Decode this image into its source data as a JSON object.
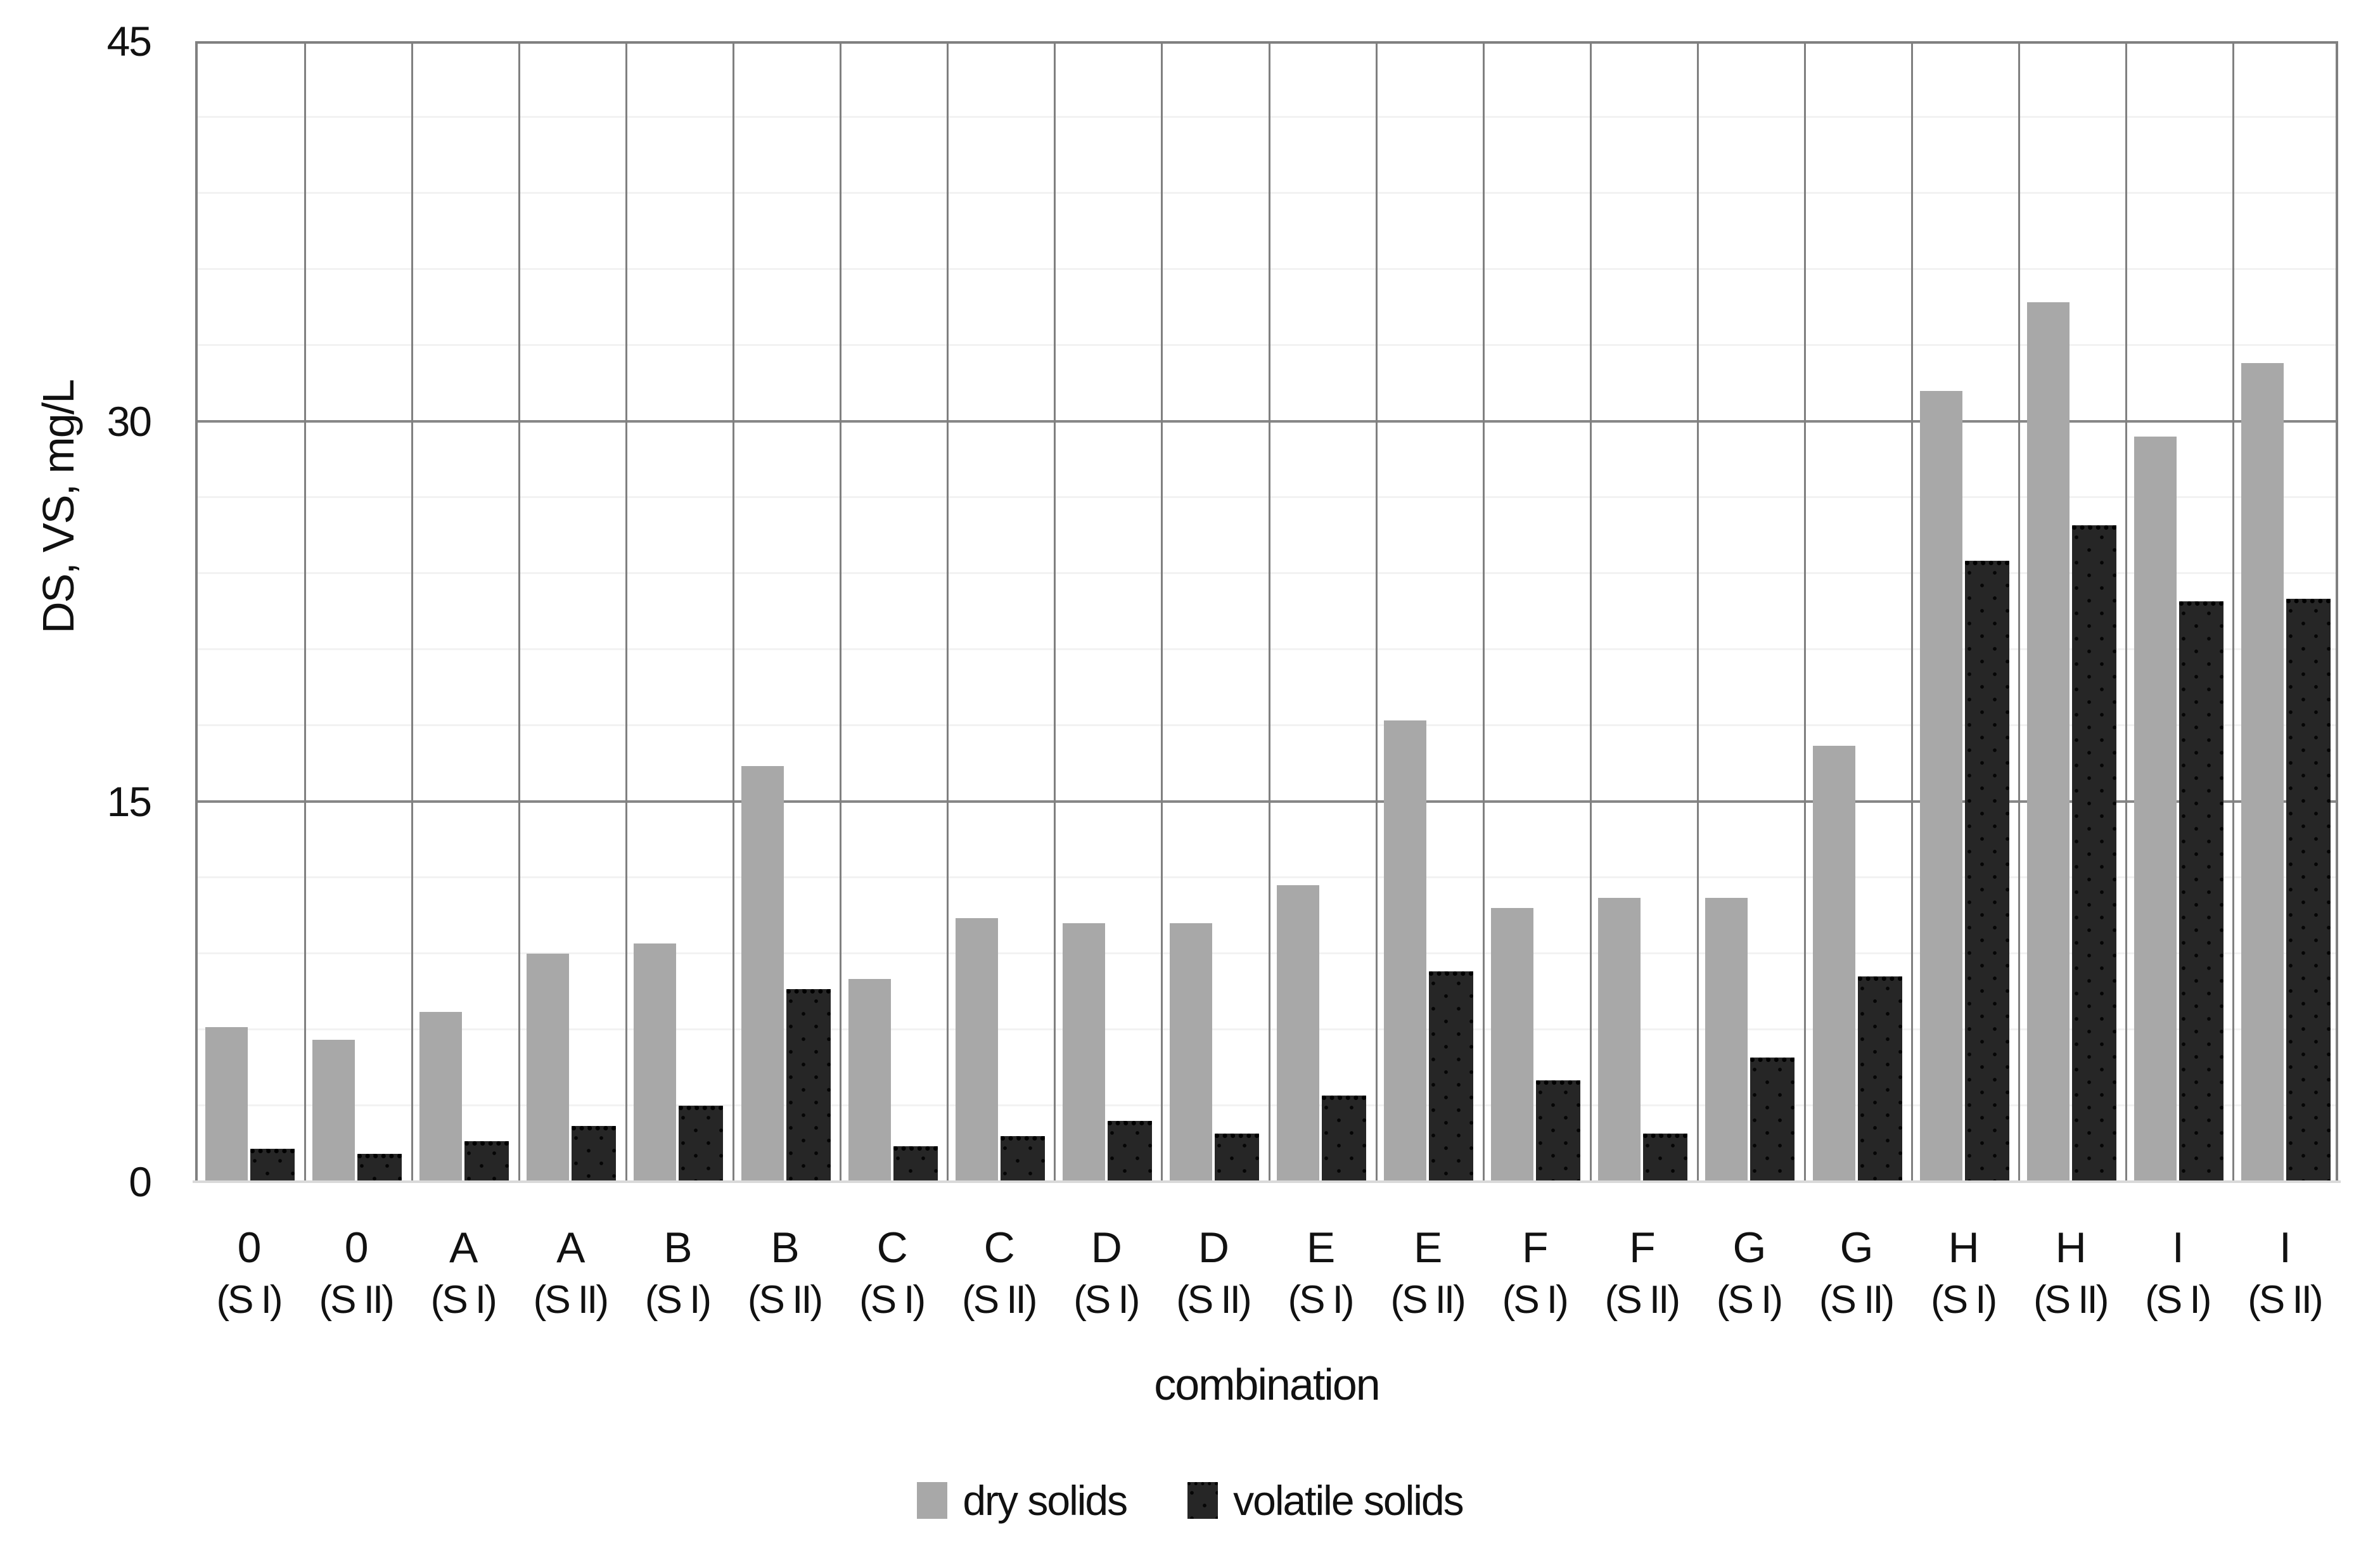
{
  "figure": {
    "y_axis_title": "DS, VS, mg/L",
    "x_axis_title": "combination"
  },
  "chart_data": {
    "type": "bar",
    "title": "",
    "xlabel": "combination",
    "ylabel": "DS, VS, mg/L",
    "ylim": [
      0,
      45
    ],
    "yticks": [
      0,
      15,
      30,
      45
    ],
    "minor_gridline_step": 3,
    "grid": "on",
    "legend_position": "bottom",
    "categories": [
      "0 (S I)",
      "0 (S II)",
      "A (S I)",
      "A (S II)",
      "B (S I)",
      "B (S II)",
      "C (S I)",
      "C (S II)",
      "D (S I)",
      "D (S II)",
      "E (S I)",
      "E (S II)",
      "F (S I)",
      "F (S II)",
      "G (S I)",
      "G (S II)",
      "H (S I)",
      "H (S II)",
      "I (S I)",
      "I (S II)"
    ],
    "series": [
      {
        "name": "dry solids",
        "color": "#a8a8a8",
        "values": [
          6.1,
          5.6,
          6.7,
          9.0,
          9.4,
          16.4,
          8.0,
          10.4,
          10.2,
          10.2,
          11.7,
          18.2,
          10.8,
          11.2,
          11.2,
          17.2,
          31.2,
          34.7,
          29.4,
          32.3
        ]
      },
      {
        "name": "volatile solids",
        "color": "#262626",
        "values": [
          1.3,
          1.1,
          1.6,
          2.2,
          3.0,
          7.6,
          1.4,
          1.8,
          2.4,
          1.9,
          3.4,
          8.3,
          4.0,
          1.9,
          4.9,
          8.1,
          24.5,
          25.9,
          22.9,
          23.0
        ]
      }
    ],
    "colors": {
      "plot_border": "#808080",
      "major_gridline": "#878787",
      "minor_gridline": "#f2f2f2",
      "baseline": "#d9d9d9",
      "text": "#111111"
    }
  }
}
